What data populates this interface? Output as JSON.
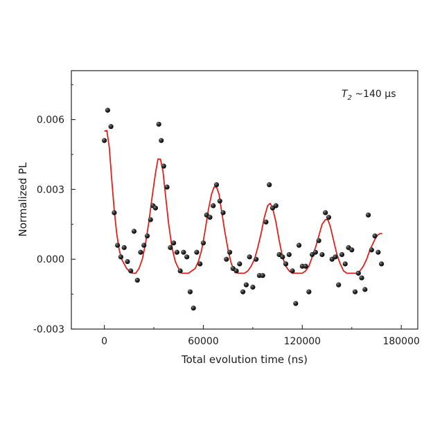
{
  "chart_data": {
    "type": "scatter",
    "xlabel": "Total evolution time (ns)",
    "ylabel": "Normalized PL",
    "xlim": [
      -20000,
      190000
    ],
    "ylim": [
      -0.003,
      0.0081
    ],
    "xticks": [
      0,
      60000,
      120000,
      180000
    ],
    "xtick_labels": [
      "0",
      "60000",
      "120000",
      "180000"
    ],
    "yticks": [
      -0.003,
      0.0,
      0.003,
      0.006
    ],
    "ytick_labels": [
      "-0.003",
      "0.000",
      "0.003",
      "0.006"
    ],
    "grid": false,
    "annotation": {
      "symbol": "T",
      "subscript": "2",
      "text": " ~140 μs"
    },
    "series": [
      {
        "kind": "points",
        "color": "#111111",
        "points": [
          [
            0,
            0.0051
          ],
          [
            2000,
            0.0064
          ],
          [
            4000,
            0.0057
          ],
          [
            6000,
            0.002
          ],
          [
            8000,
            0.0006
          ],
          [
            10000,
            0.0001
          ],
          [
            12000,
            0.0005
          ],
          [
            14000,
            -0.0001
          ],
          [
            16000,
            -0.0005
          ],
          [
            18000,
            0.0012
          ],
          [
            20000,
            -0.0009
          ],
          [
            22000,
            0.0003
          ],
          [
            24000,
            0.0006
          ],
          [
            26000,
            0.001
          ],
          [
            28000,
            0.0017
          ],
          [
            29500,
            0.0023
          ],
          [
            31000,
            0.0022
          ],
          [
            33000,
            0.0058
          ],
          [
            34500,
            0.0051
          ],
          [
            36000,
            0.004
          ],
          [
            38000,
            0.0031
          ],
          [
            40000,
            0.0005
          ],
          [
            42000,
            0.0007
          ],
          [
            44000,
            0.0003
          ],
          [
            46000,
            -0.0005
          ],
          [
            48000,
            0.0003
          ],
          [
            50000,
            0.0001
          ],
          [
            52000,
            -0.0014
          ],
          [
            54000,
            -0.0021
          ],
          [
            56000,
            0.0003
          ],
          [
            58000,
            -0.0002
          ],
          [
            60000,
            0.0007
          ],
          [
            62000,
            0.0019
          ],
          [
            64000,
            0.0018
          ],
          [
            66000,
            0.0023
          ],
          [
            68000,
            0.0032
          ],
          [
            70000,
            0.0025
          ],
          [
            72000,
            0.002
          ],
          [
            74000,
            0.0
          ],
          [
            76000,
            0.0003
          ],
          [
            78000,
            -0.0004
          ],
          [
            80000,
            -0.0005
          ],
          [
            82000,
            -0.0002
          ],
          [
            84000,
            -0.0014
          ],
          [
            86000,
            -0.0011
          ],
          [
            88000,
            0.0001
          ],
          [
            90000,
            -0.0012
          ],
          [
            92000,
            0.0
          ],
          [
            94000,
            -0.0007
          ],
          [
            96000,
            -0.0007
          ],
          [
            98000,
            0.0016
          ],
          [
            100000,
            0.0032
          ],
          [
            102000,
            0.0022
          ],
          [
            104000,
            0.0023
          ],
          [
            106000,
            0.0002
          ],
          [
            108000,
            0.0001
          ],
          [
            110000,
            -0.0002
          ],
          [
            112000,
            0.0002
          ],
          [
            114000,
            -0.0005
          ],
          [
            116000,
            -0.0019
          ],
          [
            118000,
            0.0006
          ],
          [
            120000,
            -0.0003
          ],
          [
            122000,
            -0.0003
          ],
          [
            124000,
            -0.0014
          ],
          [
            126000,
            0.0002
          ],
          [
            128000,
            0.0003
          ],
          [
            130000,
            0.0008
          ],
          [
            132000,
            0.0002
          ],
          [
            134000,
            0.002
          ],
          [
            136000,
            0.0018
          ],
          [
            138000,
            0.0
          ],
          [
            140000,
            0.0001
          ],
          [
            142000,
            -0.0011
          ],
          [
            144000,
            0.0002
          ],
          [
            146000,
            -0.0002
          ],
          [
            148000,
            0.0005
          ],
          [
            150000,
            0.0004
          ],
          [
            152000,
            -0.0014
          ],
          [
            154000,
            -0.0006
          ],
          [
            156000,
            -0.0008
          ],
          [
            158000,
            -0.0013
          ],
          [
            160000,
            0.0019
          ],
          [
            162000,
            0.0004
          ],
          [
            164000,
            0.001
          ],
          [
            166000,
            0.0003
          ],
          [
            168000,
            -0.0002
          ]
        ]
      },
      {
        "kind": "fit",
        "color": "#e0201a",
        "points": [
          [
            0,
            0.0055
          ],
          [
            1500,
            0.00553
          ],
          [
            3000,
            0.0048
          ],
          [
            4500,
            0.0034
          ],
          [
            6000,
            0.0021
          ],
          [
            7500,
            0.0011
          ],
          [
            9000,
            0.0004
          ],
          [
            10500,
            0.0
          ],
          [
            12000,
            -0.0002
          ],
          [
            13500,
            -0.0004
          ],
          [
            15000,
            -0.0005
          ],
          [
            17000,
            -0.0006
          ],
          [
            19000,
            -0.0006
          ],
          [
            21000,
            -0.0004
          ],
          [
            23000,
            0.0
          ],
          [
            25000,
            0.0007
          ],
          [
            27000,
            0.0016
          ],
          [
            29000,
            0.0027
          ],
          [
            31000,
            0.0037
          ],
          [
            32500,
            0.0043
          ],
          [
            34000,
            0.0043
          ],
          [
            35500,
            0.0038
          ],
          [
            37000,
            0.0028
          ],
          [
            39000,
            0.0015
          ],
          [
            41000,
            0.0005
          ],
          [
            43000,
            -0.0001
          ],
          [
            45000,
            -0.0004
          ],
          [
            47000,
            -0.0006
          ],
          [
            49000,
            -0.0006
          ],
          [
            51000,
            -0.0006
          ],
          [
            53000,
            -0.0005
          ],
          [
            55000,
            -0.0004
          ],
          [
            57000,
            -0.0001
          ],
          [
            59000,
            0.0004
          ],
          [
            61000,
            0.0012
          ],
          [
            63000,
            0.0021
          ],
          [
            65000,
            0.0028
          ],
          [
            66500,
            0.0031
          ],
          [
            68000,
            0.0031
          ],
          [
            69500,
            0.0028
          ],
          [
            71000,
            0.0021
          ],
          [
            73000,
            0.0012
          ],
          [
            75000,
            0.0004
          ],
          [
            77000,
            -0.0002
          ],
          [
            79000,
            -0.0005
          ],
          [
            81000,
            -0.0006
          ],
          [
            83000,
            -0.0006
          ],
          [
            85000,
            -0.0006
          ],
          [
            87000,
            -0.0005
          ],
          [
            89000,
            -0.0003
          ],
          [
            91000,
            0.0
          ],
          [
            93000,
            0.0005
          ],
          [
            95000,
            0.0011
          ],
          [
            97000,
            0.0018
          ],
          [
            99000,
            0.0023
          ],
          [
            100500,
            0.0024
          ],
          [
            102000,
            0.0022
          ],
          [
            104000,
            0.0016
          ],
          [
            106000,
            0.0008
          ],
          [
            108000,
            0.0001
          ],
          [
            110000,
            -0.0003
          ],
          [
            112000,
            -0.0005
          ],
          [
            114000,
            -0.0006
          ],
          [
            116000,
            -0.0006
          ],
          [
            118000,
            -0.0006
          ],
          [
            120000,
            -0.0006
          ],
          [
            122000,
            -0.0005
          ],
          [
            124000,
            -0.0003
          ],
          [
            126000,
            0.0001
          ],
          [
            128000,
            0.0005
          ],
          [
            130000,
            0.001
          ],
          [
            132000,
            0.0015
          ],
          [
            134000,
            0.0017
          ],
          [
            135500,
            0.0017
          ],
          [
            137000,
            0.0014
          ],
          [
            139000,
            0.0008
          ],
          [
            141000,
            0.0002
          ],
          [
            143000,
            -0.0002
          ],
          [
            145000,
            -0.0005
          ],
          [
            147000,
            -0.0006
          ],
          [
            149000,
            -0.0006
          ],
          [
            151000,
            -0.0006
          ],
          [
            153000,
            -0.0006
          ],
          [
            155000,
            -0.0005
          ],
          [
            157000,
            -0.0003
          ],
          [
            159000,
            0.0
          ],
          [
            161000,
            0.0004
          ],
          [
            163000,
            0.0007
          ],
          [
            165000,
            0.001
          ],
          [
            167000,
            0.0011
          ],
          [
            168500,
            0.0011
          ]
        ]
      }
    ]
  }
}
